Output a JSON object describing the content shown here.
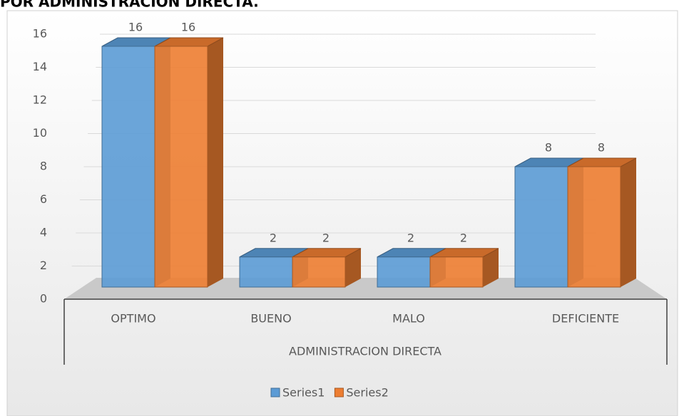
{
  "chart_data": {
    "type": "bar3d",
    "title": "POR ADMINISTRACION DIRECTA.",
    "categories": [
      "OPTIMO",
      "BUENO",
      "MALO",
      "DEFICIENTE"
    ],
    "group_label": "ADMINISTRACION DIRECTA",
    "series": [
      {
        "name": "Series1",
        "color": "#5b9bd5",
        "values": [
          16,
          2,
          2,
          8
        ]
      },
      {
        "name": "Series2",
        "color": "#ed7d31",
        "values": [
          16,
          2,
          2,
          8
        ]
      }
    ],
    "ylim": [
      0,
      16
    ],
    "yticks": [
      0,
      2,
      4,
      6,
      8,
      10,
      12,
      14,
      16
    ],
    "grid": true,
    "legend": "bottom"
  }
}
